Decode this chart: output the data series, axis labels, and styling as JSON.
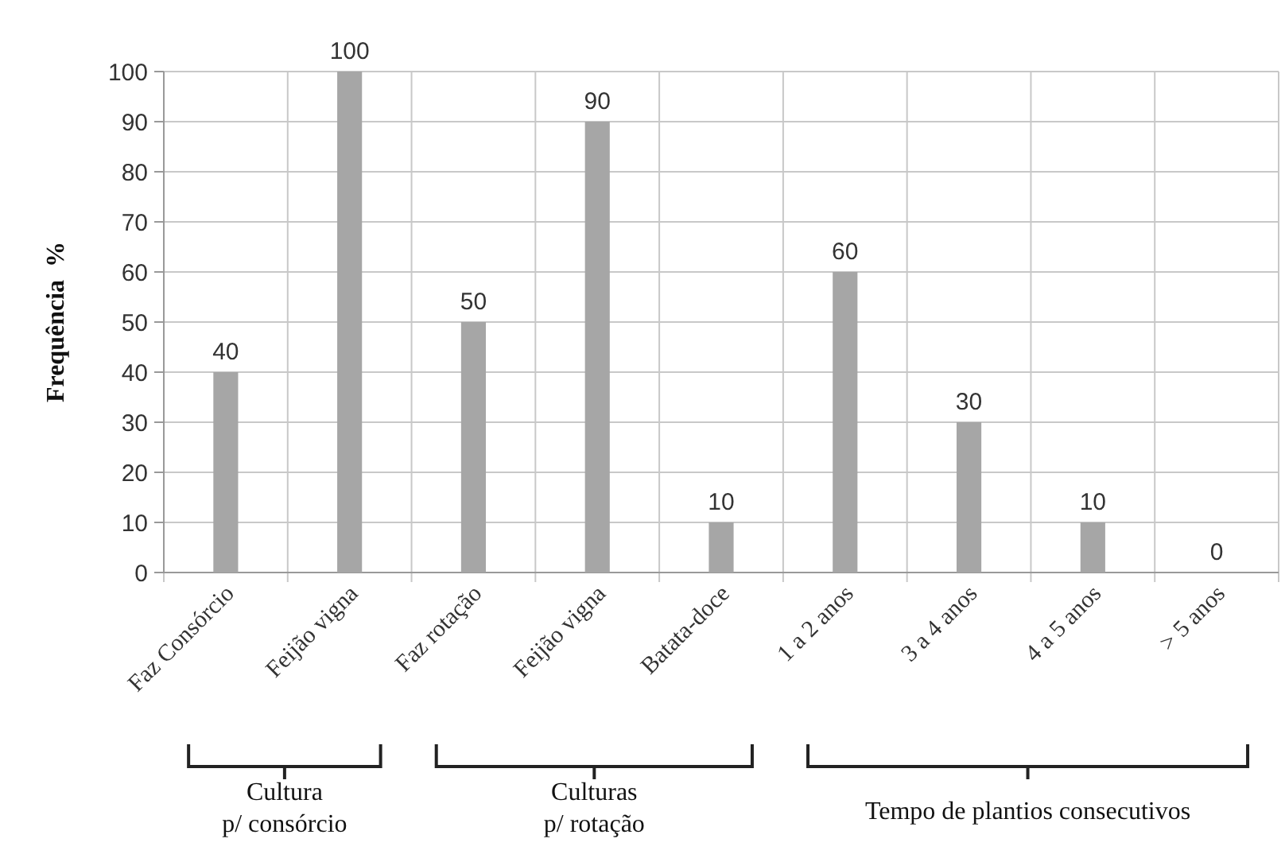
{
  "chart_data": {
    "type": "bar",
    "ylabel": "Frequência  %",
    "categories": [
      "Faz Consórcio",
      "Feijão vigna",
      "Faz rotação",
      "Feijão vigna",
      "Batata-doce",
      "1 a 2 anos",
      "3 a 4 anos",
      "4 a 5 anos",
      "> 5 anos"
    ],
    "values": [
      40,
      100,
      50,
      90,
      10,
      60,
      30,
      10,
      0
    ],
    "color": "#a6a6a6",
    "ylim": [
      0,
      100
    ],
    "yticks": [
      0,
      10,
      20,
      30,
      40,
      50,
      60,
      70,
      80,
      90,
      100
    ],
    "grid": true,
    "data_labels": true,
    "annotations": [
      "Cultura\np/ consórcio",
      "Culturas\np/ rotação",
      "Tempo de plantios consecutivos"
    ]
  }
}
